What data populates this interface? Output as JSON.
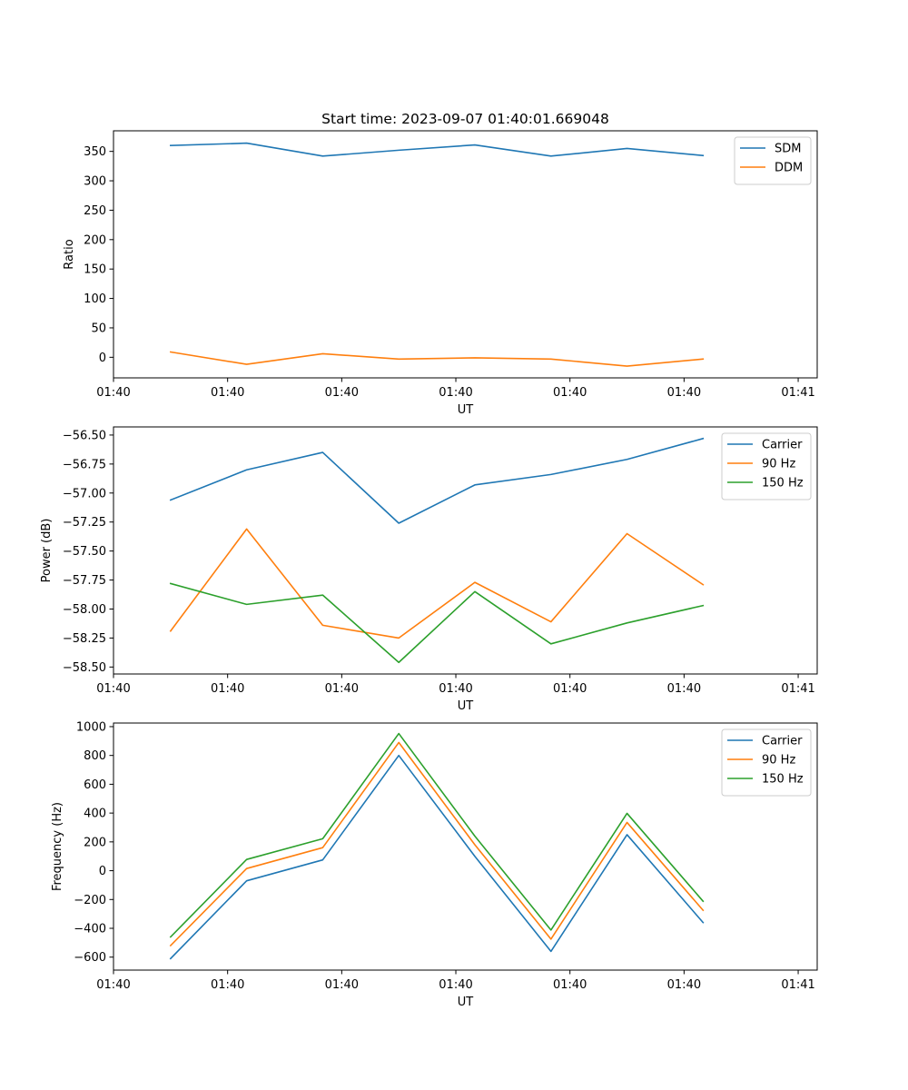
{
  "chart_data": [
    {
      "type": "line",
      "title": "Start time: 2023-09-07 01:40:01.669048",
      "xlabel": "UT",
      "ylabel": "Ratio",
      "x": [
        1,
        2,
        3,
        4,
        5,
        6,
        7,
        8
      ],
      "xlim": [
        0.25,
        9.5
      ],
      "xticks": [
        0.25,
        1.75,
        3.25,
        4.75,
        6.25,
        7.75,
        9.25
      ],
      "xtick_labels": [
        "01:40",
        "01:40",
        "01:40",
        "01:40",
        "01:40",
        "01:40",
        "01:41"
      ],
      "ylim": [
        -35,
        385
      ],
      "yticks": [
        0,
        50,
        100,
        150,
        200,
        250,
        300,
        350
      ],
      "ytick_labels": [
        "0",
        "50",
        "100",
        "150",
        "200",
        "250",
        "300",
        "350"
      ],
      "legend_position": "top-right",
      "series": [
        {
          "name": "SDM",
          "color": "#1f77b4",
          "values": [
            360,
            364,
            342,
            352,
            361,
            342,
            355,
            343
          ]
        },
        {
          "name": "DDM",
          "color": "#ff7f0e",
          "values": [
            9,
            -12,
            6,
            -3,
            -1,
            -3,
            -15,
            -3
          ]
        }
      ]
    },
    {
      "type": "line",
      "title": "",
      "xlabel": "UT",
      "ylabel": "Power (dB)",
      "x": [
        1,
        2,
        3,
        4,
        5,
        6,
        7,
        8
      ],
      "xlim": [
        0.25,
        9.5
      ],
      "xticks": [
        0.25,
        1.75,
        3.25,
        4.75,
        6.25,
        7.75,
        9.25
      ],
      "xtick_labels": [
        "01:40",
        "01:40",
        "01:40",
        "01:40",
        "01:40",
        "01:40",
        "01:41"
      ],
      "ylim": [
        -58.56,
        -56.43
      ],
      "yticks": [
        -58.5,
        -58.25,
        -58.0,
        -57.75,
        -57.5,
        -57.25,
        -57.0,
        -56.75,
        -56.5
      ],
      "ytick_labels": [
        "−58.50",
        "−58.25",
        "−58.00",
        "−57.75",
        "−57.50",
        "−57.25",
        "−57.00",
        "−56.75",
        "−56.50"
      ],
      "legend_position": "top-right",
      "series": [
        {
          "name": "Carrier",
          "color": "#1f77b4",
          "values": [
            -57.06,
            -56.8,
            -56.65,
            -57.26,
            -56.93,
            -56.84,
            -56.71,
            -56.53
          ]
        },
        {
          "name": "90 Hz",
          "color": "#ff7f0e",
          "values": [
            -58.19,
            -57.31,
            -58.14,
            -58.25,
            -57.77,
            -58.11,
            -57.35,
            -57.79
          ]
        },
        {
          "name": "150 Hz",
          "color": "#2ca02c",
          "values": [
            -57.78,
            -57.96,
            -57.88,
            -58.46,
            -57.85,
            -58.3,
            -58.12,
            -57.97
          ]
        }
      ]
    },
    {
      "type": "line",
      "title": "",
      "xlabel": "UT",
      "ylabel": "Frequency (Hz)",
      "x": [
        1,
        2,
        3,
        4,
        5,
        6,
        7,
        8
      ],
      "xlim": [
        0.25,
        9.5
      ],
      "xticks": [
        0.25,
        1.75,
        3.25,
        4.75,
        6.25,
        7.75,
        9.25
      ],
      "xtick_labels": [
        "01:40",
        "01:40",
        "01:40",
        "01:40",
        "01:40",
        "01:40",
        "01:41"
      ],
      "ylim": [
        -690,
        1025
      ],
      "yticks": [
        -600,
        -400,
        -200,
        0,
        200,
        400,
        600,
        800,
        1000
      ],
      "ytick_labels": [
        "−600",
        "−400",
        "−200",
        "0",
        "200",
        "400",
        "600",
        "800",
        "1000"
      ],
      "legend_position": "top-right",
      "series": [
        {
          "name": "Carrier",
          "color": "#1f77b4",
          "values": [
            -610,
            -70,
            75,
            800,
            100,
            -560,
            250,
            -360
          ]
        },
        {
          "name": "90 Hz",
          "color": "#ff7f0e",
          "values": [
            -520,
            15,
            160,
            890,
            180,
            -475,
            335,
            -275
          ]
        },
        {
          "name": "150 Hz",
          "color": "#2ca02c",
          "values": [
            -460,
            78,
            222,
            952,
            240,
            -412,
            398,
            -212
          ]
        }
      ]
    }
  ]
}
